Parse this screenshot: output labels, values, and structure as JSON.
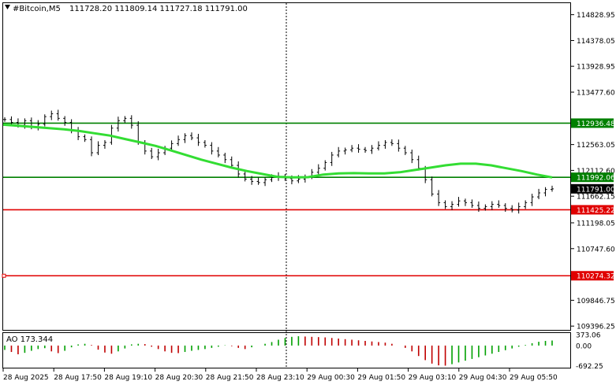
{
  "header": {
    "symbol": "#Bitcoin,M5",
    "ohlc": "111728.20 111809.14 111727.18 111791.00"
  },
  "indicator": {
    "label": "AO 173.344",
    "ticks": [
      {
        "value": 373.06,
        "label": "373.06"
      },
      {
        "value": 0,
        "label": "0.00"
      },
      {
        "value": -692.25,
        "label": "-692.25"
      }
    ],
    "range": [
      -760,
      430
    ],
    "colors": {
      "up": "#00a000",
      "down": "#c00000"
    }
  },
  "chart_data": {
    "type": "line",
    "ylim": [
      109330,
      115030
    ],
    "y_ticks": [
      {
        "value": 114828.95,
        "label": "114828.95"
      },
      {
        "value": 114378.05,
        "label": "114378.05"
      },
      {
        "value": 113928.95,
        "label": "113928.95"
      },
      {
        "value": 113477.6,
        "label": "113477.60"
      },
      {
        "value": 112563.05,
        "label": "112563.05"
      },
      {
        "value": 112112.6,
        "label": "112112.60"
      },
      {
        "value": 111662.15,
        "label": "111662.15"
      },
      {
        "value": 111198.05,
        "label": "111198.05"
      },
      {
        "value": 110747.6,
        "label": "110747.60"
      },
      {
        "value": 109846.75,
        "label": "109846.75"
      },
      {
        "value": 109396.25,
        "label": "109396.25"
      }
    ],
    "x_ticks": [
      "28 Aug 2025",
      "28 Aug 17:50",
      "28 Aug 19:10",
      "28 Aug 20:30",
      "28 Aug 21:50",
      "28 Aug 23:10",
      "29 Aug 00:30",
      "29 Aug 01:50",
      "29 Aug 03:10",
      "29 Aug 04:30",
      "29 Aug 05:50"
    ],
    "levels": [
      {
        "value": 112936.48,
        "label": "112936.48",
        "color": "#008000"
      },
      {
        "value": 111992.06,
        "label": "111992.06",
        "color": "#008000"
      },
      {
        "value": 111791.0,
        "label": "111791.00",
        "color": "#000000"
      },
      {
        "value": 111425.22,
        "label": "111425.22",
        "color": "#e00000"
      },
      {
        "value": 110274.32,
        "label": "110274.32",
        "color": "#e00000"
      }
    ],
    "price_series": [
      113000,
      112950,
      112900,
      112980,
      112870,
      112920,
      113050,
      113100,
      113020,
      112950,
      112800,
      112700,
      112650,
      112420,
      112550,
      112600,
      112850,
      112980,
      113020,
      112900,
      112600,
      112450,
      112350,
      112420,
      112500,
      112580,
      112650,
      112720,
      112680,
      112600,
      112550,
      112450,
      112380,
      112300,
      112200,
      112050,
      111960,
      111920,
      111900,
      111950,
      111990,
      112010,
      111970,
      111930,
      111960,
      112000,
      112080,
      112150,
      112250,
      112380,
      112450,
      112470,
      112500,
      112480,
      112460,
      112500,
      112550,
      112600,
      112580,
      112500,
      112420,
      112300,
      112150,
      111950,
      111700,
      111550,
      111480,
      111520,
      111580,
      111550,
      111500,
      111450,
      111480,
      111520,
      111500,
      111450,
      111420,
      111480,
      111550,
      111650,
      111720,
      111780,
      111790
    ],
    "ma_series": [
      112910,
      112890,
      112870,
      112850,
      112830,
      112800,
      112760,
      112720,
      112660,
      112600,
      112540,
      112460,
      112380,
      112300,
      112230,
      112160,
      112100,
      112050,
      112000,
      111990,
      111995,
      112040,
      112060,
      112065,
      112060,
      112060,
      112080,
      112120,
      112160,
      112200,
      112230,
      112230,
      112200,
      112150,
      112100,
      112040,
      111990
    ],
    "ao_values": [
      -150,
      -220,
      -300,
      -250,
      -180,
      -120,
      -90,
      -200,
      -260,
      -180,
      -60,
      40,
      60,
      20,
      -140,
      -240,
      -280,
      -200,
      -100,
      40,
      60,
      50,
      -40,
      -120,
      -200,
      -250,
      -260,
      -220,
      -180,
      -150,
      -120,
      -80,
      -40,
      10,
      -20,
      -80,
      -120,
      -60,
      0,
      60,
      120,
      200,
      260,
      300,
      320,
      310,
      300,
      290,
      280,
      260,
      240,
      220,
      200,
      180,
      160,
      140,
      120,
      100,
      60,
      0,
      -80,
      -200,
      -360,
      -500,
      -620,
      -680,
      -690,
      -640,
      -580,
      -520,
      -460,
      -400,
      -340,
      -280,
      -220,
      -160,
      -100,
      -40,
      20,
      80,
      130,
      160,
      173
    ]
  }
}
